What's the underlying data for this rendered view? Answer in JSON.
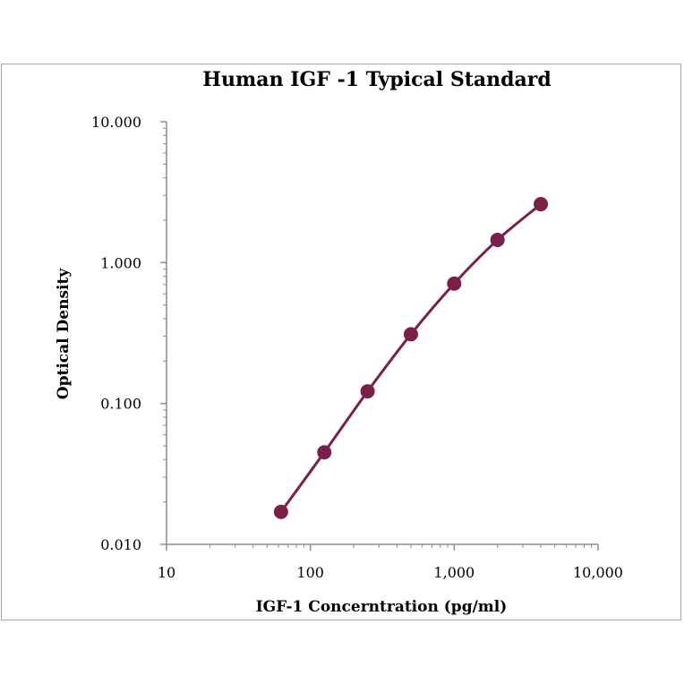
{
  "chart_data": {
    "type": "line",
    "title": "Human  IGF -1 Typical  Standard",
    "xlabel": "IGF-1  Concerntration  (pg/ml)",
    "ylabel": "Optical  Density",
    "x_scale": "log",
    "y_scale": "log",
    "xlim": [
      10,
      10000
    ],
    "ylim": [
      0.01,
      10
    ],
    "x_ticks": [
      10,
      100,
      1000,
      10000
    ],
    "x_tick_labels": [
      "10",
      "100",
      "1,000",
      "10,000"
    ],
    "y_ticks": [
      0.01,
      0.1,
      1,
      10
    ],
    "y_tick_labels": [
      "0.010",
      "0.100",
      "1.000",
      "10.000"
    ],
    "grid": false,
    "legend": "none",
    "series": [
      {
        "color": "#7a1e4a",
        "x": [
          62.5,
          125,
          250,
          500,
          1000,
          2000,
          4000
        ],
        "y": [
          0.017,
          0.045,
          0.122,
          0.31,
          0.71,
          1.45,
          2.6
        ]
      }
    ]
  }
}
